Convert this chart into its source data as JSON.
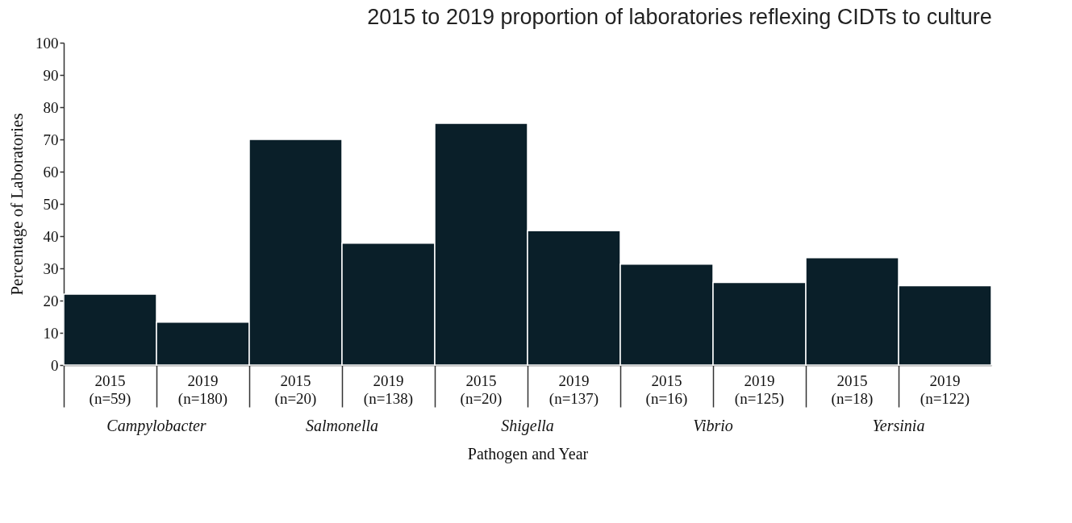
{
  "chart_data": {
    "type": "bar",
    "title": "2015 to 2019 proportion of laboratories reflexing CIDTs to culture",
    "xlabel": "Pathogen and Year",
    "ylabel": "Percentage of Laboratories",
    "categories": [
      "2015 (n=59)",
      "2019 (n=180)",
      "2015 (n=20)",
      "2019 (n=138)",
      "2015 (n=20)",
      "2019 (n=137)",
      "2015 (n=16)",
      "2019 (n=125)",
      "2015 (n=18)",
      "2019 (n=122)"
    ],
    "values": [
      22,
      13.3,
      70,
      37.8,
      75,
      41.7,
      31.3,
      25.6,
      33.3,
      24.6
    ],
    "color": "#0a1f29",
    "ylim": [
      0,
      100
    ],
    "yticks": [
      0,
      10,
      20,
      30,
      40,
      50,
      60,
      70,
      80,
      90,
      100
    ],
    "annotations": [
      "Campylobacter",
      "Salmonella",
      "Shigella",
      "Vibrio",
      "Yersinia"
    ]
  }
}
